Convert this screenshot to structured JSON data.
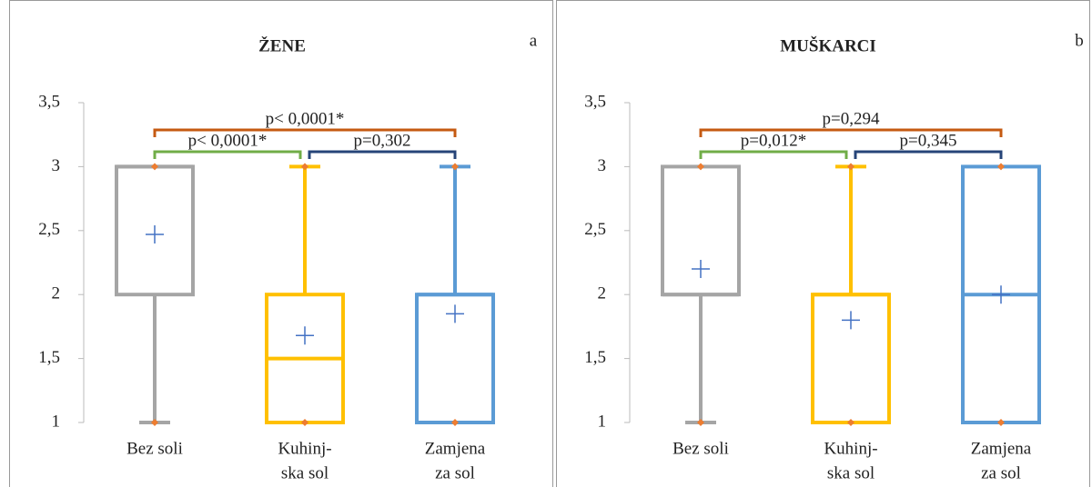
{
  "chart_data": [
    {
      "type": "box",
      "title": "ŽENE",
      "label": "a",
      "categories": [
        [
          "Bez soli"
        ],
        [
          "Kuhinj-",
          "ska sol"
        ],
        [
          "Zamjena",
          "za sol"
        ]
      ],
      "boxes": [
        {
          "color": "#a5a5a5",
          "min": 1,
          "q1": 2,
          "median": 3,
          "q3": 3,
          "max": 3,
          "mean": 2.47
        },
        {
          "color": "#ffc000",
          "min": 1,
          "q1": 1,
          "median": 1.5,
          "q3": 2,
          "max": 3,
          "mean": 1.68
        },
        {
          "color": "#5b9bd5",
          "min": 1,
          "q1": 1,
          "median": 2,
          "q3": 2,
          "max": 3,
          "mean": 1.85
        }
      ],
      "annotations": [
        {
          "text": "p< 0,0001*",
          "color": "#c55a11"
        },
        {
          "text": "p< 0,0001*",
          "color": "#70ad47"
        },
        {
          "text": "p=0,302",
          "color": "#264478"
        }
      ],
      "ylim": [
        1,
        3.5
      ],
      "yticks": [
        1,
        {
          "value": 1.5,
          "label": "1,5"
        },
        2,
        {
          "value": 2.5,
          "label": "2,5"
        },
        3,
        {
          "value": 3.5,
          "label": "3,5"
        }
      ]
    },
    {
      "type": "box",
      "title": "MUŠKARCI",
      "label": "b",
      "categories": [
        [
          "Bez soli"
        ],
        [
          "Kuhinj-",
          "ska sol"
        ],
        [
          "Zamjena",
          "za sol"
        ]
      ],
      "boxes": [
        {
          "color": "#a5a5a5",
          "min": 1,
          "q1": 2,
          "median": 2,
          "q3": 3,
          "max": 3,
          "mean": 2.2
        },
        {
          "color": "#ffc000",
          "min": 1,
          "q1": 1,
          "median": 2,
          "q3": 2,
          "max": 3,
          "mean": 1.8
        },
        {
          "color": "#5b9bd5",
          "min": 1,
          "q1": 1,
          "median": 2,
          "q3": 3,
          "max": 3,
          "mean": 2
        }
      ],
      "annotations": [
        {
          "text": "p=0,294",
          "color": "#c55a11"
        },
        {
          "text": "p=0,012*",
          "color": "#70ad47"
        },
        {
          "text": "p=0,345",
          "color": "#264478"
        }
      ],
      "ylim": [
        1,
        3.5
      ],
      "yticks": [
        1,
        {
          "value": 1.5,
          "label": "1,5"
        },
        2,
        {
          "value": 2.5,
          "label": "2,5"
        },
        3,
        {
          "value": 3.5,
          "label": "3,5"
        }
      ]
    }
  ]
}
